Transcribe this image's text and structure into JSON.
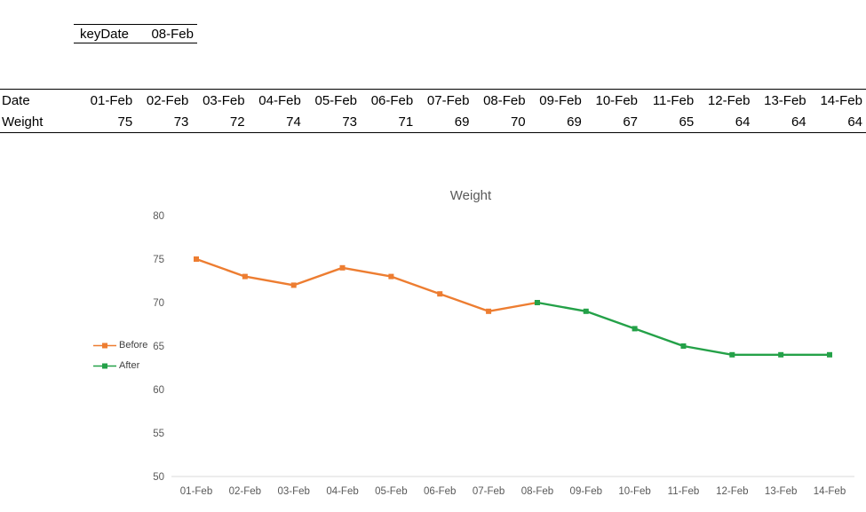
{
  "key_cell": {
    "label": "keyDate",
    "value": "08-Feb"
  },
  "table": {
    "row1_label": "Date",
    "row2_label": "Weight",
    "dates": [
      "01-Feb",
      "02-Feb",
      "03-Feb",
      "04-Feb",
      "05-Feb",
      "06-Feb",
      "07-Feb",
      "08-Feb",
      "09-Feb",
      "10-Feb",
      "11-Feb",
      "12-Feb",
      "13-Feb",
      "14-Feb"
    ],
    "weights": [
      75,
      73,
      72,
      74,
      73,
      71,
      69,
      70,
      69,
      67,
      65,
      64,
      64,
      64
    ]
  },
  "chart_data": {
    "type": "line",
    "title": "Weight",
    "x": [
      "01-Feb",
      "02-Feb",
      "03-Feb",
      "04-Feb",
      "05-Feb",
      "06-Feb",
      "07-Feb",
      "08-Feb",
      "09-Feb",
      "10-Feb",
      "11-Feb",
      "12-Feb",
      "13-Feb",
      "14-Feb"
    ],
    "series": [
      {
        "name": "Before",
        "color": "#ED7D31",
        "x_indices": [
          0,
          1,
          2,
          3,
          4,
          5,
          6,
          7
        ],
        "values": [
          75,
          73,
          72,
          74,
          73,
          71,
          69,
          70
        ]
      },
      {
        "name": "After",
        "color": "#24A148",
        "x_indices": [
          7,
          8,
          9,
          10,
          11,
          12,
          13
        ],
        "values": [
          70,
          69,
          67,
          65,
          64,
          64,
          64
        ]
      }
    ],
    "ylim": [
      50,
      80
    ],
    "yticks": [
      50,
      55,
      60,
      65,
      70,
      75,
      80
    ],
    "legend_position": "left",
    "grid": false,
    "axis_color": "#D9D9D9",
    "title_color": "#595959",
    "tick_color": "#595959"
  }
}
